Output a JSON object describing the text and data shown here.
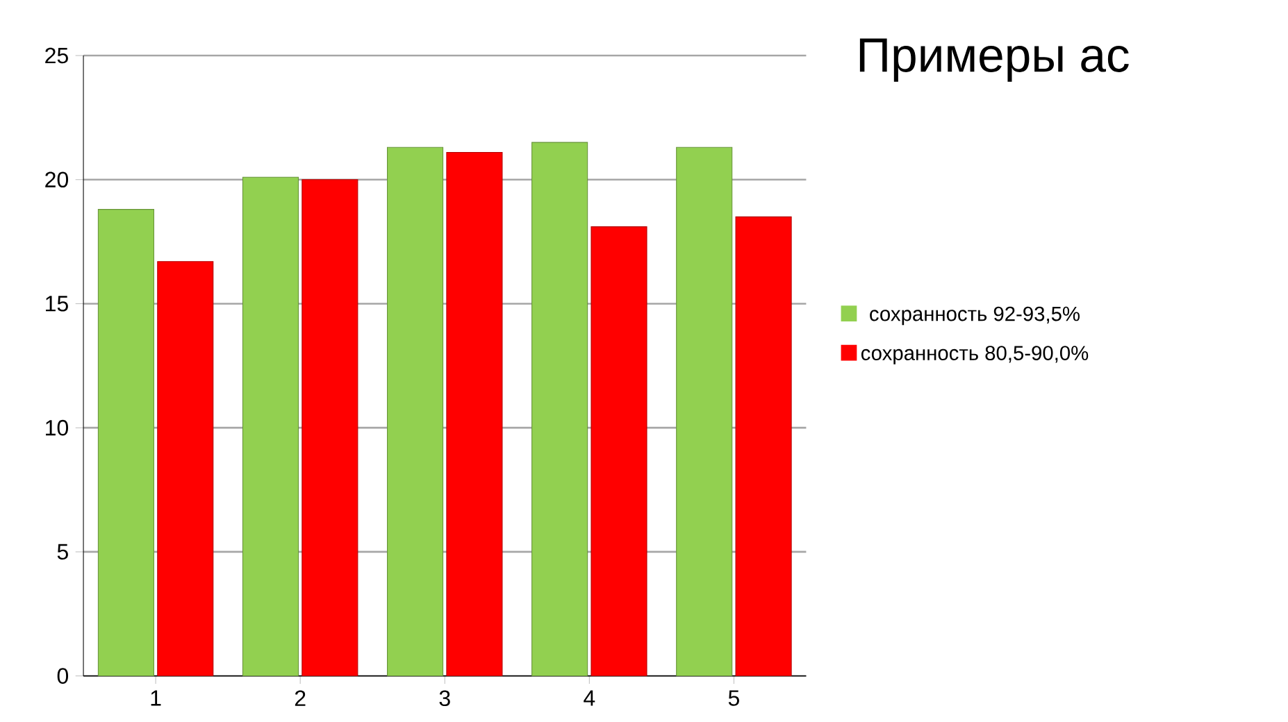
{
  "chart_data": {
    "type": "bar",
    "title": "Примеры ас",
    "categories": [
      "1",
      "2",
      "3",
      "4",
      "5"
    ],
    "series": [
      {
        "name": "сохранность 92-93,5%",
        "color": "#92d050",
        "values": [
          18.8,
          20.1,
          21.3,
          21.5,
          21.3
        ]
      },
      {
        "name": "сохранность 80,5-90,0%",
        "color": "#ff0000",
        "values": [
          16.7,
          20.0,
          21.1,
          18.1,
          18.5
        ]
      }
    ],
    "ylim": [
      0,
      25
    ],
    "yticks": [
      0,
      5,
      10,
      15,
      20,
      25
    ],
    "grid": "y",
    "legend": "right"
  }
}
